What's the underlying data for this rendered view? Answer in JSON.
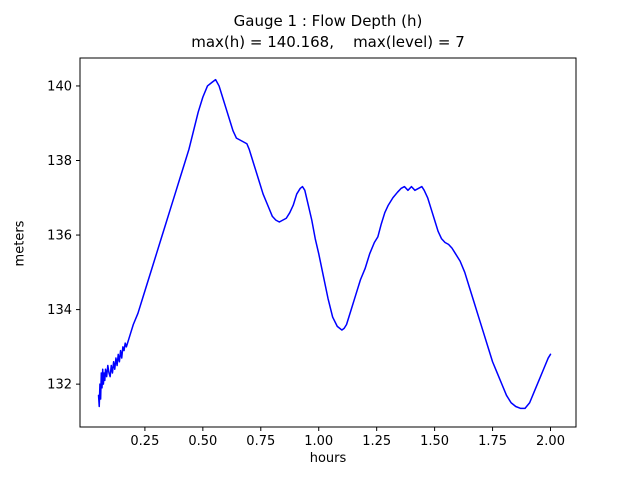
{
  "chart_data": {
    "type": "line",
    "title": "Gauge 1 : Flow Depth (h)",
    "subtitle": "max(h) = 140.168,    max(level) = 7",
    "xlabel": "hours",
    "ylabel": "meters",
    "grid": false,
    "legend": "none",
    "xlim": [
      -0.03,
      2.11
    ],
    "ylim": [
      130.85,
      140.75
    ],
    "xticks": {
      "values": [
        0.25,
        0.5,
        0.75,
        1.0,
        1.25,
        1.5,
        1.75,
        2.0
      ],
      "labels": [
        "0.25",
        "0.50",
        "0.75",
        "1.00",
        "1.25",
        "1.50",
        "1.75",
        "2.00"
      ]
    },
    "yticks": {
      "values": [
        132,
        134,
        136,
        138,
        140
      ],
      "labels": [
        "132",
        "134",
        "136",
        "138",
        "140"
      ]
    },
    "series": [
      {
        "name": "flow-depth",
        "color": "#0000ff",
        "max_h": 140.168,
        "max_level": 7,
        "points": [
          [
            0.05,
            131.7
          ],
          [
            0.053,
            131.4
          ],
          [
            0.056,
            132.0
          ],
          [
            0.059,
            131.6
          ],
          [
            0.062,
            132.3
          ],
          [
            0.065,
            131.9
          ],
          [
            0.068,
            132.4
          ],
          [
            0.071,
            132.0
          ],
          [
            0.074,
            132.3
          ],
          [
            0.077,
            132.1
          ],
          [
            0.08,
            132.4
          ],
          [
            0.085,
            132.2
          ],
          [
            0.09,
            132.5
          ],
          [
            0.095,
            132.3
          ],
          [
            0.1,
            132.2
          ],
          [
            0.105,
            132.5
          ],
          [
            0.11,
            132.3
          ],
          [
            0.115,
            132.6
          ],
          [
            0.12,
            132.4
          ],
          [
            0.125,
            132.7
          ],
          [
            0.13,
            132.5
          ],
          [
            0.135,
            132.8
          ],
          [
            0.14,
            132.6
          ],
          [
            0.145,
            132.9
          ],
          [
            0.15,
            132.7
          ],
          [
            0.155,
            133.0
          ],
          [
            0.16,
            132.9
          ],
          [
            0.165,
            133.1
          ],
          [
            0.17,
            133.0
          ],
          [
            0.18,
            133.2
          ],
          [
            0.19,
            133.4
          ],
          [
            0.2,
            133.6
          ],
          [
            0.22,
            133.9
          ],
          [
            0.24,
            134.3
          ],
          [
            0.26,
            134.7
          ],
          [
            0.28,
            135.1
          ],
          [
            0.3,
            135.5
          ],
          [
            0.32,
            135.9
          ],
          [
            0.34,
            136.3
          ],
          [
            0.36,
            136.7
          ],
          [
            0.38,
            137.1
          ],
          [
            0.4,
            137.5
          ],
          [
            0.42,
            137.9
          ],
          [
            0.44,
            138.3
          ],
          [
            0.46,
            138.8
          ],
          [
            0.48,
            139.3
          ],
          [
            0.5,
            139.7
          ],
          [
            0.52,
            140.0
          ],
          [
            0.54,
            140.1
          ],
          [
            0.555,
            140.17
          ],
          [
            0.57,
            140.0
          ],
          [
            0.585,
            139.7
          ],
          [
            0.6,
            139.4
          ],
          [
            0.615,
            139.1
          ],
          [
            0.63,
            138.8
          ],
          [
            0.645,
            138.6
          ],
          [
            0.66,
            138.55
          ],
          [
            0.675,
            138.5
          ],
          [
            0.69,
            138.45
          ],
          [
            0.7,
            138.3
          ],
          [
            0.71,
            138.1
          ],
          [
            0.72,
            137.9
          ],
          [
            0.74,
            137.5
          ],
          [
            0.76,
            137.1
          ],
          [
            0.78,
            136.8
          ],
          [
            0.8,
            136.5
          ],
          [
            0.815,
            136.4
          ],
          [
            0.83,
            136.35
          ],
          [
            0.845,
            136.4
          ],
          [
            0.86,
            136.45
          ],
          [
            0.875,
            136.6
          ],
          [
            0.89,
            136.8
          ],
          [
            0.905,
            137.1
          ],
          [
            0.92,
            137.25
          ],
          [
            0.93,
            137.3
          ],
          [
            0.94,
            137.2
          ],
          [
            0.955,
            136.8
          ],
          [
            0.97,
            136.4
          ],
          [
            0.985,
            135.9
          ],
          [
            1.0,
            135.5
          ],
          [
            1.02,
            134.9
          ],
          [
            1.04,
            134.3
          ],
          [
            1.06,
            133.8
          ],
          [
            1.08,
            133.55
          ],
          [
            1.1,
            133.45
          ],
          [
            1.11,
            133.5
          ],
          [
            1.12,
            133.6
          ],
          [
            1.14,
            134.0
          ],
          [
            1.16,
            134.4
          ],
          [
            1.18,
            134.8
          ],
          [
            1.2,
            135.1
          ],
          [
            1.22,
            135.5
          ],
          [
            1.24,
            135.8
          ],
          [
            1.255,
            135.95
          ],
          [
            1.27,
            136.3
          ],
          [
            1.285,
            136.6
          ],
          [
            1.3,
            136.8
          ],
          [
            1.32,
            137.0
          ],
          [
            1.34,
            137.15
          ],
          [
            1.355,
            137.25
          ],
          [
            1.37,
            137.3
          ],
          [
            1.385,
            137.2
          ],
          [
            1.4,
            137.3
          ],
          [
            1.415,
            137.2
          ],
          [
            1.43,
            137.25
          ],
          [
            1.445,
            137.3
          ],
          [
            1.455,
            137.2
          ],
          [
            1.47,
            137.0
          ],
          [
            1.485,
            136.7
          ],
          [
            1.5,
            136.4
          ],
          [
            1.515,
            136.1
          ],
          [
            1.53,
            135.9
          ],
          [
            1.545,
            135.8
          ],
          [
            1.56,
            135.75
          ],
          [
            1.575,
            135.65
          ],
          [
            1.59,
            135.5
          ],
          [
            1.61,
            135.3
          ],
          [
            1.63,
            135.0
          ],
          [
            1.65,
            134.6
          ],
          [
            1.67,
            134.2
          ],
          [
            1.69,
            133.8
          ],
          [
            1.71,
            133.4
          ],
          [
            1.73,
            133.0
          ],
          [
            1.75,
            132.6
          ],
          [
            1.77,
            132.3
          ],
          [
            1.79,
            132.0
          ],
          [
            1.81,
            131.7
          ],
          [
            1.83,
            131.5
          ],
          [
            1.85,
            131.4
          ],
          [
            1.87,
            131.35
          ],
          [
            1.89,
            131.35
          ],
          [
            1.91,
            131.5
          ],
          [
            1.93,
            131.8
          ],
          [
            1.95,
            132.1
          ],
          [
            1.97,
            132.4
          ],
          [
            1.99,
            132.7
          ],
          [
            2.0,
            132.8
          ]
        ]
      }
    ]
  }
}
